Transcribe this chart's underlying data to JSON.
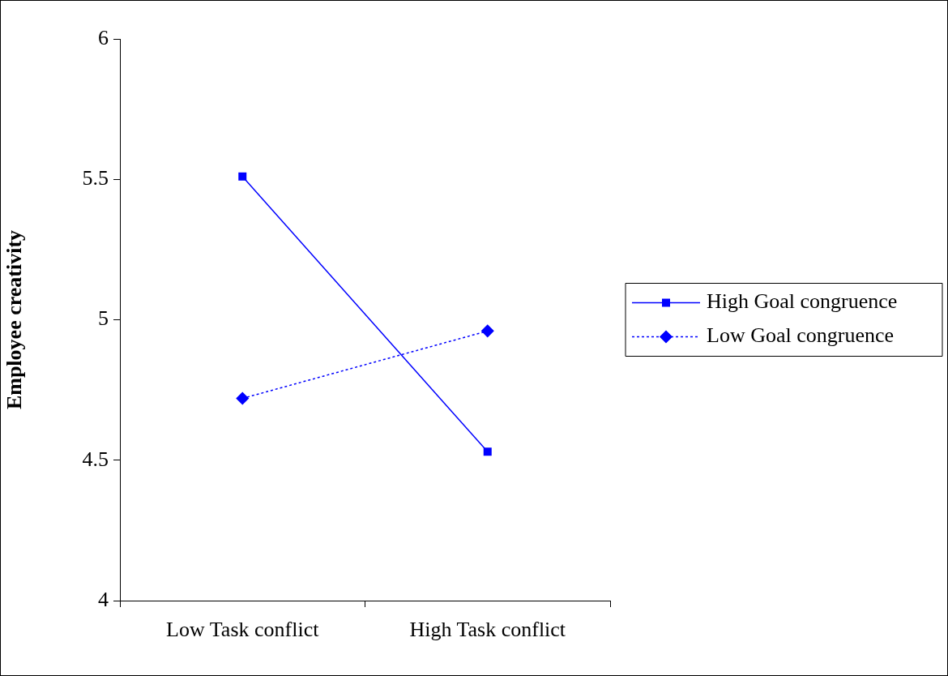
{
  "chart_data": {
    "type": "line",
    "ylabel": "Employee creativity",
    "categories": [
      "Low Task conflict",
      "High Task conflict"
    ],
    "ylim": [
      4,
      6
    ],
    "yticks": [
      4,
      4.5,
      5,
      5.5,
      6
    ],
    "grid": false,
    "legend": "right",
    "series": [
      {
        "name": "High Goal congruence",
        "color": "#0000ff",
        "values": [
          5.51,
          4.53
        ],
        "marker": "square",
        "line_style": "solid"
      },
      {
        "name": "Low Goal congruence",
        "color": "#0000ff",
        "values": [
          4.72,
          4.96
        ],
        "marker": "diamond",
        "line_style": "dotted"
      }
    ]
  }
}
